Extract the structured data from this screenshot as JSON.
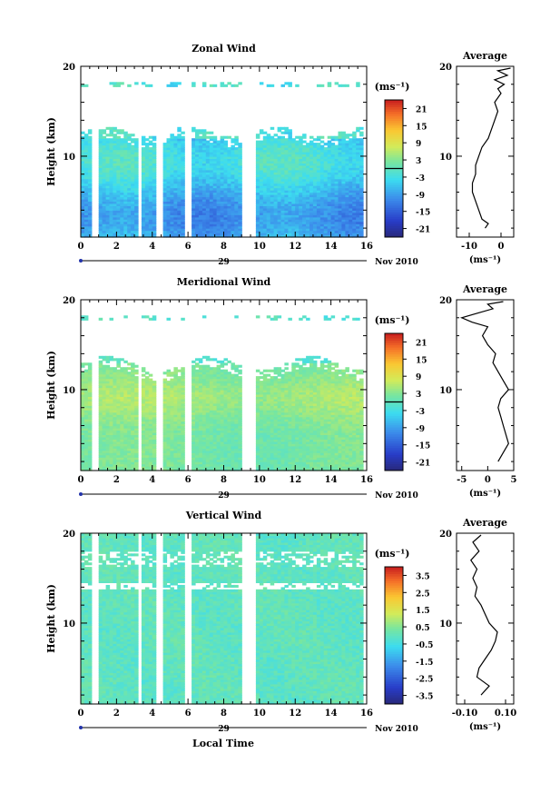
{
  "figure": {
    "date_label": "Nov 2010",
    "day_label": "29",
    "xlabel": "Local Time",
    "ylabel": "Height (km)",
    "unit_label": "(ms⁻¹)",
    "average_title": "Average"
  },
  "chart_data": [
    {
      "type": "heatmap",
      "title": "Zonal Wind",
      "x_range": [
        0,
        16
      ],
      "x_ticks": [
        "0",
        "2",
        "4",
        "6",
        "8",
        "10",
        "12",
        "14",
        "16"
      ],
      "y_range": [
        1,
        20
      ],
      "y_ticks": [
        "10",
        "20"
      ],
      "colorbar": {
        "ticks": [
          "21",
          "15",
          "9",
          "3",
          "-3",
          "-9",
          "-15",
          "-21"
        ],
        "range": [
          -24,
          24
        ],
        "zero_line": true
      },
      "z_typical": "about -3 to -12 m/s below 12 km, weaker near the top",
      "gaps_x": [
        [
          0.55,
          0.95
        ],
        [
          3.05,
          3.35
        ],
        [
          4.15,
          4.6
        ],
        [
          5.7,
          6.05
        ],
        [
          8.95,
          9.6
        ]
      ],
      "profile": {
        "title": "Average",
        "x_range": [
          -14,
          4
        ],
        "x_ticks": [
          "-10",
          "0"
        ],
        "xlabel": "(ms⁻¹)",
        "y_ticks": [
          "10",
          "20"
        ],
        "points": [
          [
            -5,
            2
          ],
          [
            -4,
            2.5
          ],
          [
            -6,
            3
          ],
          [
            -7,
            4
          ],
          [
            -8,
            5
          ],
          [
            -9,
            6
          ],
          [
            -9,
            7
          ],
          [
            -8,
            8
          ],
          [
            -8,
            9
          ],
          [
            -7,
            10
          ],
          [
            -6,
            11
          ],
          [
            -4,
            12
          ],
          [
            -3,
            13
          ],
          [
            -2,
            14
          ],
          [
            -1,
            15
          ],
          [
            -2,
            16
          ],
          [
            0,
            17
          ],
          [
            -1,
            17.5
          ],
          [
            1,
            18
          ],
          [
            -2,
            18.5
          ],
          [
            2,
            19
          ],
          [
            -1,
            19.5
          ],
          [
            3,
            19.8
          ]
        ]
      }
    },
    {
      "type": "heatmap",
      "title": "Meridional Wind",
      "x_range": [
        0,
        16
      ],
      "x_ticks": [
        "0",
        "2",
        "4",
        "6",
        "8",
        "10",
        "12",
        "14",
        "16"
      ],
      "y_range": [
        1,
        20
      ],
      "y_ticks": [
        "10",
        "20"
      ],
      "colorbar": {
        "ticks": [
          "21",
          "15",
          "9",
          "3",
          "-3",
          "-9",
          "-15",
          "-21"
        ],
        "range": [
          -24,
          24
        ],
        "zero_line": true
      },
      "z_typical": "about 0 to 6 m/s, strongest near 8-10 km",
      "gaps_x": [
        [
          0.55,
          0.95
        ],
        [
          3.05,
          3.35
        ],
        [
          4.15,
          4.6
        ],
        [
          5.7,
          6.05
        ],
        [
          8.95,
          9.6
        ]
      ],
      "profile": {
        "title": "Average",
        "x_range": [
          -6,
          5
        ],
        "x_ticks": [
          "-5",
          "0",
          "5"
        ],
        "xlabel": "(ms⁻¹)",
        "y_ticks": [
          "10",
          "20"
        ],
        "points": [
          [
            2,
            2
          ],
          [
            3,
            3
          ],
          [
            4,
            4
          ],
          [
            3.5,
            5
          ],
          [
            3,
            6
          ],
          [
            2.5,
            7
          ],
          [
            2,
            8
          ],
          [
            2.5,
            9
          ],
          [
            4,
            10
          ],
          [
            3,
            11
          ],
          [
            2,
            12
          ],
          [
            1,
            13
          ],
          [
            1.5,
            14
          ],
          [
            0,
            15
          ],
          [
            -1,
            16
          ],
          [
            0,
            17
          ],
          [
            -3,
            17.5
          ],
          [
            -5,
            18
          ],
          [
            -2,
            18.5
          ],
          [
            1,
            19
          ],
          [
            0,
            19.5
          ],
          [
            3,
            19.8
          ]
        ]
      }
    },
    {
      "type": "heatmap",
      "title": "Vertical Wind",
      "x_range": [
        0,
        16
      ],
      "x_ticks": [
        "0",
        "2",
        "4",
        "6",
        "8",
        "10",
        "12",
        "14",
        "16"
      ],
      "y_range": [
        1,
        20
      ],
      "y_ticks": [
        "10",
        "20"
      ],
      "colorbar": {
        "ticks": [
          "3.5",
          "2.5",
          "1.5",
          "0.5",
          "-0.5",
          "-1.5",
          "-2.5",
          "-3.5"
        ],
        "range": [
          -4,
          4
        ],
        "zero_line": false
      },
      "z_typical": "about -0.5 to 0.5 m/s",
      "gaps_x": [
        [
          0.55,
          0.95
        ],
        [
          3.05,
          3.35
        ],
        [
          4.15,
          4.6
        ],
        [
          5.7,
          6.05
        ],
        [
          8.95,
          9.6
        ]
      ],
      "profile": {
        "title": "Average",
        "x_range": [
          -0.14,
          0.14
        ],
        "x_ticks": [
          "-0.10",
          "0.10"
        ],
        "xlabel": "(ms⁻¹)",
        "y_ticks": [
          "10",
          "20"
        ],
        "points": [
          [
            -0.02,
            2
          ],
          [
            0.02,
            3
          ],
          [
            -0.04,
            4
          ],
          [
            -0.03,
            5
          ],
          [
            0.0,
            6
          ],
          [
            0.03,
            7
          ],
          [
            0.05,
            8
          ],
          [
            0.06,
            9
          ],
          [
            0.02,
            10
          ],
          [
            0.0,
            11
          ],
          [
            -0.02,
            12
          ],
          [
            -0.05,
            13
          ],
          [
            -0.04,
            14
          ],
          [
            -0.06,
            15
          ],
          [
            -0.04,
            16
          ],
          [
            -0.07,
            17
          ],
          [
            -0.03,
            18
          ],
          [
            -0.06,
            19
          ],
          [
            -0.02,
            19.8
          ]
        ]
      }
    }
  ]
}
